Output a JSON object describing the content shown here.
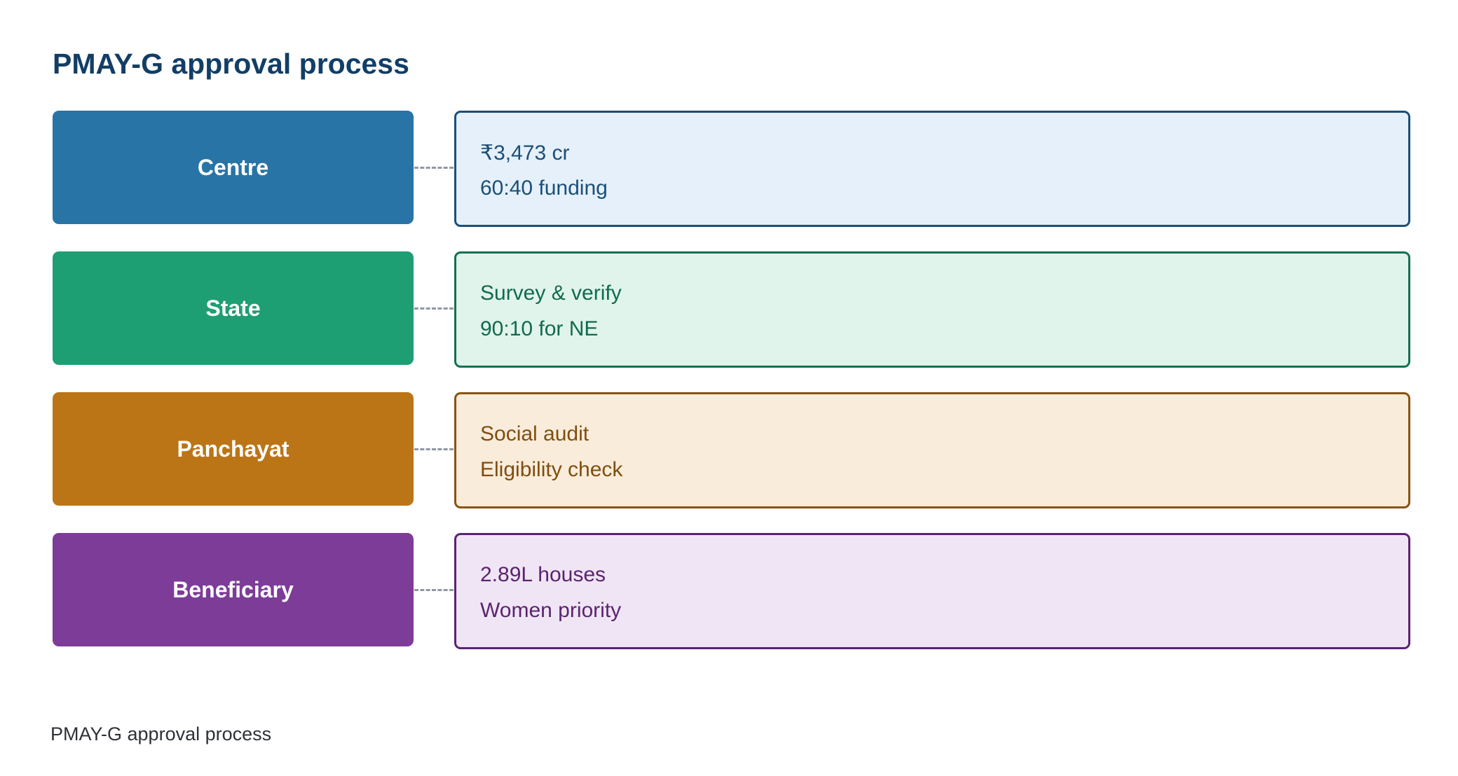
{
  "title": "PMAY-G approval process",
  "stages": [
    {
      "label": "Centre",
      "color": "#2874a6",
      "detail_bg": "#e5f0fa",
      "detail_border": "#1a4f7a",
      "detail_text": "#1b4f78",
      "details": [
        "₹3,473 cr",
        "60:40 funding"
      ]
    },
    {
      "label": "State",
      "color": "#1e9e73",
      "detail_bg": "#e0f4ec",
      "detail_border": "#147052",
      "detail_text": "#116a4e",
      "details": [
        "Survey & verify",
        "90:10 for NE"
      ]
    },
    {
      "label": "Panchayat",
      "color": "#bb7517",
      "detail_bg": "#faecda",
      "detail_border": "#8a5210",
      "detail_text": "#7f4e10",
      "details": [
        "Social audit",
        "Eligibility check"
      ]
    },
    {
      "label": "Beneficiary",
      "color": "#7d3c98",
      "detail_bg": "#f0e5f5",
      "detail_border": "#5c2270",
      "detail_text": "#5a2470",
      "details": [
        "2.89L houses",
        "Women priority"
      ]
    }
  ],
  "connector_color": "#8f98a4",
  "footer": "PMAY-G approval process"
}
